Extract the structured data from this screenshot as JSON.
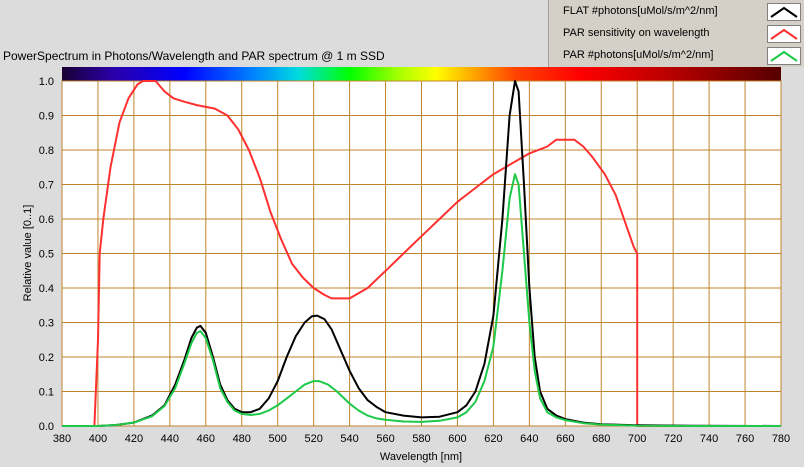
{
  "chart_data": {
    "type": "line",
    "title": "PowerSpectrum in Photons/Wavelength and PAR spectrum @ 1 m SSD",
    "xlabel": "Wavelength [nm]",
    "ylabel": "Relative value [0..1]",
    "xlim": [
      380,
      780
    ],
    "ylim": [
      0,
      1
    ],
    "grid": true,
    "legend_position": "top-right",
    "x_ticks": [
      "380",
      "400",
      "420",
      "440",
      "460",
      "480",
      "500",
      "520",
      "540",
      "560",
      "580",
      "600",
      "620",
      "640",
      "660",
      "680",
      "700",
      "720",
      "740",
      "760",
      "780"
    ],
    "y_ticks": [
      "0.0",
      "0.1",
      "0.2",
      "0.3",
      "0.4",
      "0.5",
      "0.6",
      "0.7",
      "0.8",
      "0.9",
      "1.0"
    ],
    "series": [
      {
        "name": "FLAT #photons[uMol/s/m^2/nm]",
        "color": "#000000",
        "points": [
          [
            380,
            0
          ],
          [
            395,
            0
          ],
          [
            400,
            0
          ],
          [
            410,
            0.003
          ],
          [
            420,
            0.01
          ],
          [
            430,
            0.03
          ],
          [
            437,
            0.06
          ],
          [
            443,
            0.12
          ],
          [
            448,
            0.19
          ],
          [
            452,
            0.255
          ],
          [
            455,
            0.285
          ],
          [
            457,
            0.29
          ],
          [
            460,
            0.27
          ],
          [
            464,
            0.2
          ],
          [
            468,
            0.12
          ],
          [
            472,
            0.075
          ],
          [
            476,
            0.05
          ],
          [
            480,
            0.04
          ],
          [
            485,
            0.04
          ],
          [
            490,
            0.05
          ],
          [
            495,
            0.08
          ],
          [
            500,
            0.13
          ],
          [
            505,
            0.2
          ],
          [
            510,
            0.26
          ],
          [
            515,
            0.3
          ],
          [
            519,
            0.318
          ],
          [
            522,
            0.32
          ],
          [
            526,
            0.31
          ],
          [
            530,
            0.28
          ],
          [
            535,
            0.22
          ],
          [
            540,
            0.16
          ],
          [
            545,
            0.11
          ],
          [
            550,
            0.075
          ],
          [
            555,
            0.055
          ],
          [
            560,
            0.04
          ],
          [
            570,
            0.03
          ],
          [
            580,
            0.025
          ],
          [
            590,
            0.027
          ],
          [
            600,
            0.04
          ],
          [
            605,
            0.06
          ],
          [
            610,
            0.1
          ],
          [
            615,
            0.18
          ],
          [
            620,
            0.32
          ],
          [
            625,
            0.6
          ],
          [
            629,
            0.9
          ],
          [
            632,
            1.0
          ],
          [
            634,
            0.97
          ],
          [
            637,
            0.7
          ],
          [
            640,
            0.4
          ],
          [
            643,
            0.2
          ],
          [
            646,
            0.1
          ],
          [
            650,
            0.05
          ],
          [
            655,
            0.03
          ],
          [
            660,
            0.02
          ],
          [
            670,
            0.01
          ],
          [
            680,
            0.005
          ],
          [
            700,
            0.002
          ],
          [
            730,
            0.001
          ],
          [
            780,
            0.0
          ]
        ]
      },
      {
        "name": "PAR sensitivity on wavelength",
        "color": "#ff3030",
        "points": [
          [
            380,
            0
          ],
          [
            398,
            0
          ],
          [
            400,
            0.25
          ],
          [
            401,
            0.5
          ],
          [
            403,
            0.6
          ],
          [
            407,
            0.75
          ],
          [
            412,
            0.88
          ],
          [
            417,
            0.95
          ],
          [
            422,
            0.99
          ],
          [
            425,
            1.0
          ],
          [
            432,
            1.0
          ],
          [
            437,
            0.97
          ],
          [
            442,
            0.95
          ],
          [
            448,
            0.94
          ],
          [
            455,
            0.93
          ],
          [
            465,
            0.92
          ],
          [
            472,
            0.9
          ],
          [
            478,
            0.86
          ],
          [
            484,
            0.8
          ],
          [
            490,
            0.72
          ],
          [
            496,
            0.62
          ],
          [
            502,
            0.54
          ],
          [
            508,
            0.47
          ],
          [
            514,
            0.43
          ],
          [
            520,
            0.4
          ],
          [
            526,
            0.38
          ],
          [
            530,
            0.37
          ],
          [
            540,
            0.37
          ],
          [
            550,
            0.4
          ],
          [
            560,
            0.45
          ],
          [
            570,
            0.5
          ],
          [
            580,
            0.55
          ],
          [
            590,
            0.6
          ],
          [
            600,
            0.65
          ],
          [
            610,
            0.69
          ],
          [
            620,
            0.73
          ],
          [
            630,
            0.76
          ],
          [
            640,
            0.79
          ],
          [
            650,
            0.81
          ],
          [
            655,
            0.83
          ],
          [
            665,
            0.83
          ],
          [
            670,
            0.81
          ],
          [
            675,
            0.78
          ],
          [
            682,
            0.73
          ],
          [
            688,
            0.67
          ],
          [
            694,
            0.58
          ],
          [
            698,
            0.52
          ],
          [
            700,
            0.5
          ],
          [
            700,
            0
          ],
          [
            780,
            0
          ]
        ]
      },
      {
        "name": "PAR #photons[uMol/s/m^2/nm]",
        "color": "#1ec94a",
        "points": [
          [
            380,
            0
          ],
          [
            400,
            0
          ],
          [
            410,
            0.003
          ],
          [
            420,
            0.01
          ],
          [
            430,
            0.028
          ],
          [
            437,
            0.058
          ],
          [
            443,
            0.11
          ],
          [
            448,
            0.18
          ],
          [
            452,
            0.24
          ],
          [
            455,
            0.27
          ],
          [
            457,
            0.275
          ],
          [
            460,
            0.255
          ],
          [
            464,
            0.19
          ],
          [
            468,
            0.11
          ],
          [
            472,
            0.07
          ],
          [
            476,
            0.045
          ],
          [
            480,
            0.035
          ],
          [
            485,
            0.032
          ],
          [
            490,
            0.035
          ],
          [
            495,
            0.045
          ],
          [
            500,
            0.06
          ],
          [
            505,
            0.08
          ],
          [
            510,
            0.1
          ],
          [
            515,
            0.12
          ],
          [
            520,
            0.13
          ],
          [
            523,
            0.13
          ],
          [
            528,
            0.12
          ],
          [
            533,
            0.1
          ],
          [
            540,
            0.065
          ],
          [
            545,
            0.045
          ],
          [
            550,
            0.03
          ],
          [
            555,
            0.022
          ],
          [
            560,
            0.018
          ],
          [
            570,
            0.013
          ],
          [
            580,
            0.012
          ],
          [
            590,
            0.015
          ],
          [
            600,
            0.025
          ],
          [
            605,
            0.04
          ],
          [
            610,
            0.07
          ],
          [
            615,
            0.13
          ],
          [
            620,
            0.23
          ],
          [
            625,
            0.45
          ],
          [
            629,
            0.66
          ],
          [
            632,
            0.73
          ],
          [
            634,
            0.7
          ],
          [
            637,
            0.5
          ],
          [
            640,
            0.3
          ],
          [
            643,
            0.16
          ],
          [
            646,
            0.08
          ],
          [
            650,
            0.04
          ],
          [
            655,
            0.025
          ],
          [
            660,
            0.017
          ],
          [
            670,
            0.008
          ],
          [
            680,
            0.004
          ],
          [
            700,
            0.001
          ],
          [
            730,
            0
          ],
          [
            780,
            0
          ]
        ]
      }
    ]
  }
}
